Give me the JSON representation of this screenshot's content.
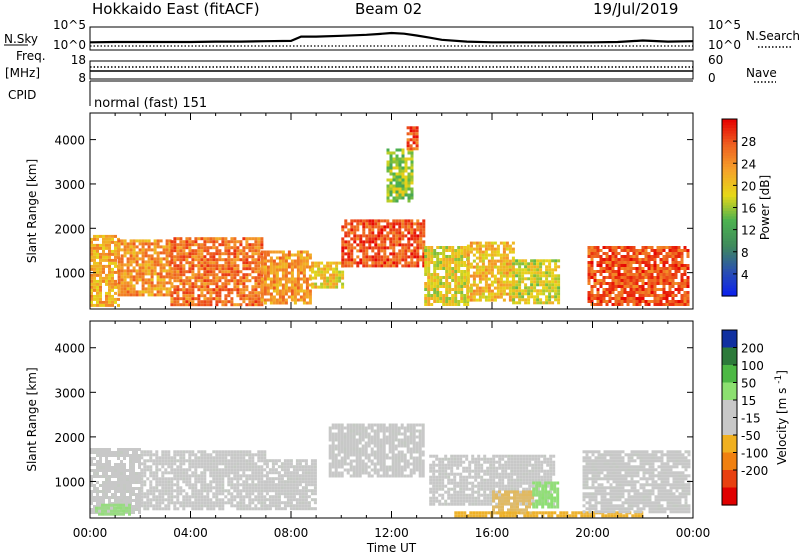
{
  "header": {
    "station": "Hokkaido East (fitACF)",
    "beam": "Beam 02",
    "date": "19/Jul/2019"
  },
  "chart_data": [
    {
      "type": "line",
      "panel": "noise",
      "left_label": "N.Sky",
      "right_label": "N.Search",
      "left_ticks": [
        "10^5",
        "10^0"
      ],
      "right_ticks": [
        "10^5",
        "10^0"
      ],
      "x_range_hours": [
        0,
        24
      ],
      "series": [
        {
          "name": "N.Sky",
          "x": [
            0,
            1,
            2,
            3,
            4,
            5,
            6,
            7,
            8,
            8.4,
            9,
            10,
            11,
            11.5,
            12,
            12.5,
            13,
            13.5,
            14,
            15,
            16,
            18,
            20,
            21,
            22,
            23,
            24
          ],
          "values": [
            1.3,
            1.4,
            1.4,
            1.4,
            1.4,
            1.5,
            1.5,
            1.6,
            1.7,
            2.9,
            2.9,
            3.1,
            3.4,
            3.6,
            3.9,
            3.7,
            3.2,
            2.6,
            2.0,
            1.5,
            1.3,
            1.3,
            1.3,
            1.4,
            1.8,
            1.5,
            1.6
          ]
        }
      ]
    },
    {
      "type": "line",
      "panel": "frequency",
      "left_label": "Freq.",
      "left_unit": "[MHz]",
      "right_label": "Nave",
      "left_ticks": [
        "18",
        "8"
      ],
      "right_ticks": [
        "60",
        "0"
      ],
      "x_range_hours": [
        0,
        24
      ]
    },
    {
      "type": "table",
      "panel": "cpid",
      "left_label": "CPID",
      "mode_label": "normal (fast) 151"
    },
    {
      "type": "heatmap",
      "panel": "power",
      "ylabel": "Slant Range [km]",
      "xlabel": "",
      "x_range_hours": [
        0,
        24
      ],
      "ylim": [
        180,
        4600
      ],
      "y_ticks": [
        1000,
        2000,
        3000,
        4000
      ],
      "colorbar_title": "Power [dB]",
      "colorbar_ticks": [
        "4",
        "8",
        "12",
        "16",
        "20",
        "24",
        "28"
      ],
      "colorbar_range": [
        0,
        32
      ],
      "colorbar_stops": [
        "#0a1ef0",
        "#2a50b0",
        "#3f8a5c",
        "#4cb250",
        "#e6d818",
        "#f5a22a",
        "#ee6020",
        "#e60000"
      ],
      "regions": [
        {
          "t0": 0.0,
          "t1": 1.1,
          "r0": 260,
          "r1": 1850,
          "value": 22
        },
        {
          "t0": 1.1,
          "t1": 3.2,
          "r0": 500,
          "r1": 1750,
          "value": 24
        },
        {
          "t0": 3.2,
          "t1": 6.8,
          "r0": 300,
          "r1": 1800,
          "value": 26
        },
        {
          "t0": 6.8,
          "t1": 8.8,
          "r0": 300,
          "r1": 1500,
          "value": 24
        },
        {
          "t0": 8.8,
          "t1": 10.0,
          "r0": 700,
          "r1": 1250,
          "value": 20
        },
        {
          "t0": 10.0,
          "t1": 13.3,
          "r0": 1150,
          "r1": 2200,
          "value": 28
        },
        {
          "t0": 13.3,
          "t1": 15.0,
          "r0": 300,
          "r1": 1600,
          "value": 19
        },
        {
          "t0": 15.0,
          "t1": 16.8,
          "r0": 400,
          "r1": 1700,
          "value": 21
        },
        {
          "t0": 16.8,
          "t1": 18.6,
          "r0": 300,
          "r1": 1300,
          "value": 18
        },
        {
          "t0": 19.8,
          "t1": 23.8,
          "r0": 250,
          "r1": 1600,
          "value": 28
        },
        {
          "t0": 11.8,
          "t1": 12.8,
          "r0": 2600,
          "r1": 3800,
          "value": 16
        },
        {
          "t0": 12.6,
          "t1": 13.0,
          "r0": 3800,
          "r1": 4300,
          "value": 28
        }
      ]
    },
    {
      "type": "heatmap",
      "panel": "velocity",
      "ylabel": "Slant Range [km]",
      "xlabel": "Time UT",
      "x_ticks": [
        "00:00",
        "04:00",
        "08:00",
        "12:00",
        "16:00",
        "20:00",
        "00:00"
      ],
      "x_range_hours": [
        0,
        24
      ],
      "ylim": [
        180,
        4600
      ],
      "y_ticks": [
        1000,
        2000,
        3000,
        4000
      ],
      "colorbar_title": "Velocity [m s",
      "colorbar_title_sup": "-1",
      "colorbar_title_end": "]",
      "colorbar_ticks": [
        "200",
        "100",
        "50",
        "15",
        "-15",
        "-50",
        "-100",
        "-200"
      ],
      "colorbar_stops": [
        "#1030a0",
        "#2c7a3a",
        "#4cb844",
        "#8ce070",
        "#c8c8c8",
        "#c8c8c8",
        "#f0b020",
        "#f08010",
        "#e84010",
        "#e00000"
      ],
      "regions": [
        {
          "t0": 0.0,
          "t1": 2.0,
          "r0": 300,
          "r1": 1750,
          "value": 0
        },
        {
          "t0": 2.0,
          "t1": 7.0,
          "r0": 400,
          "r1": 1700,
          "value": 0
        },
        {
          "t0": 0.2,
          "t1": 1.6,
          "r0": 250,
          "r1": 500,
          "value": 30
        },
        {
          "t0": 7.0,
          "t1": 9.0,
          "r0": 400,
          "r1": 1500,
          "value": 0
        },
        {
          "t0": 9.5,
          "t1": 13.3,
          "r0": 1150,
          "r1": 2300,
          "value": 0
        },
        {
          "t0": 13.5,
          "t1": 18.5,
          "r0": 500,
          "r1": 1600,
          "value": 0
        },
        {
          "t0": 16.0,
          "t1": 17.6,
          "r0": 300,
          "r1": 800,
          "value": -60
        },
        {
          "t0": 17.6,
          "t1": 18.6,
          "r0": 400,
          "r1": 1000,
          "value": 35
        },
        {
          "t0": 14.5,
          "t1": 22.0,
          "r0": 200,
          "r1": 330,
          "value": -80
        },
        {
          "t0": 19.6,
          "t1": 23.8,
          "r0": 300,
          "r1": 1700,
          "value": 0
        }
      ]
    }
  ]
}
